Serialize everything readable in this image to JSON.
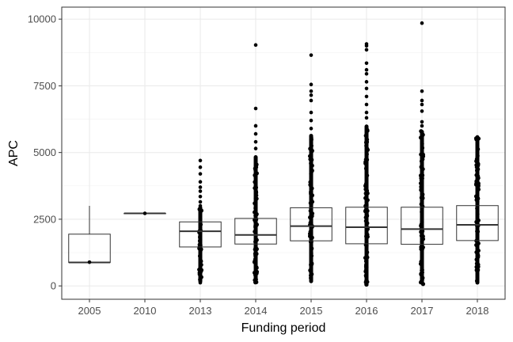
{
  "chart_data": {
    "type": "box",
    "xlabel": "Funding period",
    "ylabel": "APC",
    "ylim": [
      -500,
      10450
    ],
    "yticks": [
      0,
      2500,
      5000,
      7500,
      10000
    ],
    "yticklabels": [
      "0",
      "2500",
      "5000",
      "7500",
      "10000"
    ],
    "grid": true,
    "categories": [
      "2005",
      "2010",
      "2013",
      "2014",
      "2015",
      "2016",
      "2017",
      "2018"
    ],
    "boxes": [
      {
        "category": "2005",
        "whisker_low": 880,
        "q1": 880,
        "median": 880,
        "q3": 1940,
        "whisker_high": 3000,
        "outliers": [
          890
        ]
      },
      {
        "category": "2010",
        "whisker_low": 2720,
        "q1": 2720,
        "median": 2720,
        "q3": 2720,
        "whisker_high": 2720,
        "outliers": [
          2720
        ]
      },
      {
        "category": "2013",
        "whisker_low": 1460,
        "q1": 1460,
        "median": 2050,
        "q3": 2400,
        "whisker_high": 2400,
        "outliers": [
          120,
          280,
          450,
          600,
          800,
          1000,
          1200,
          1350,
          2550,
          2700,
          2850,
          3000,
          3150,
          3350,
          3550,
          3700,
          3900,
          4200,
          4450,
          4700
        ],
        "outlier_band": [
          100,
          3000
        ]
      },
      {
        "category": "2014",
        "whisker_low": 1570,
        "q1": 1570,
        "median": 1910,
        "q3": 2530,
        "whisker_high": 2530,
        "outliers": [
          5150,
          5400,
          5700,
          6000,
          6650,
          9030
        ],
        "outlier_band": [
          100,
          4900
        ]
      },
      {
        "category": "2015",
        "whisker_low": 1690,
        "q1": 1690,
        "median": 2240,
        "q3": 2930,
        "whisker_high": 2930,
        "outliers": [
          5900,
          6200,
          6500,
          6950,
          7150,
          7300,
          7550,
          8650
        ],
        "outlier_band": [
          100,
          5700
        ]
      },
      {
        "category": "2016",
        "whisker_low": 1580,
        "q1": 1580,
        "median": 2200,
        "q3": 2950,
        "whisker_high": 2950,
        "outliers": [
          6300,
          6500,
          6800,
          7100,
          7400,
          7650,
          7950,
          8100,
          8350,
          8850,
          9000,
          9070
        ],
        "outlier_band": [
          50,
          6050
        ]
      },
      {
        "category": "2017",
        "whisker_low": 1560,
        "q1": 1560,
        "median": 2130,
        "q3": 2950,
        "whisker_high": 2950,
        "outliers": [
          6000,
          6150,
          6550,
          6800,
          6950,
          7300,
          9850
        ],
        "outlier_band": [
          50,
          5850
        ]
      },
      {
        "category": "2018",
        "whisker_low": 1700,
        "q1": 1700,
        "median": 2290,
        "q3": 3010,
        "whisker_high": 3010,
        "outliers": [],
        "outlier_band": [
          50,
          5650
        ]
      }
    ]
  }
}
